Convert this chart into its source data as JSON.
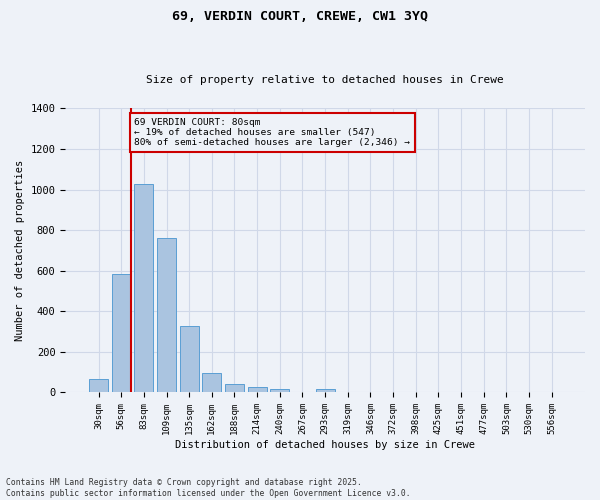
{
  "title1": "69, VERDIN COURT, CREWE, CW1 3YQ",
  "title2": "Size of property relative to detached houses in Crewe",
  "xlabel": "Distribution of detached houses by size in Crewe",
  "ylabel": "Number of detached properties",
  "categories": [
    "30sqm",
    "56sqm",
    "83sqm",
    "109sqm",
    "135sqm",
    "162sqm",
    "188sqm",
    "214sqm",
    "240sqm",
    "267sqm",
    "293sqm",
    "319sqm",
    "346sqm",
    "372sqm",
    "398sqm",
    "425sqm",
    "451sqm",
    "477sqm",
    "503sqm",
    "530sqm",
    "556sqm"
  ],
  "values": [
    65,
    585,
    1030,
    760,
    330,
    95,
    40,
    25,
    15,
    0,
    15,
    0,
    0,
    0,
    0,
    0,
    0,
    0,
    0,
    0,
    0
  ],
  "bar_color": "#aac4e0",
  "bar_edge_color": "#5a9fd4",
  "grid_color": "#d0d8e8",
  "background_color": "#eef2f8",
  "vline_color": "#cc0000",
  "annotation_text": "69 VERDIN COURT: 80sqm\n← 19% of detached houses are smaller (547)\n80% of semi-detached houses are larger (2,346) →",
  "annotation_box_color": "#cc0000",
  "ylim": [
    0,
    1400
  ],
  "yticks": [
    0,
    200,
    400,
    600,
    800,
    1000,
    1200,
    1400
  ],
  "footnote1": "Contains HM Land Registry data © Crown copyright and database right 2025.",
  "footnote2": "Contains public sector information licensed under the Open Government Licence v3.0."
}
